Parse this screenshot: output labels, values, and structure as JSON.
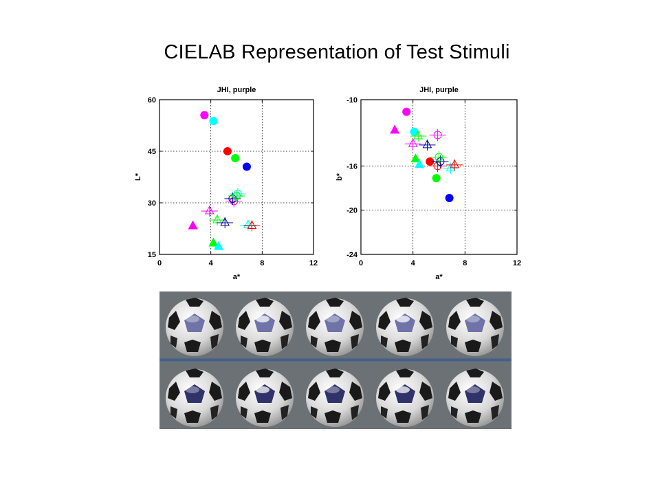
{
  "slide": {
    "title": "CIELAB Representation of Test Stimuli"
  },
  "colors": {
    "magenta": "#ff00ff",
    "cyan": "#00ffff",
    "red": "#ff0000",
    "green": "#00ff00",
    "blue": "#0000ff",
    "navy": "#0000a0"
  },
  "chart_data": [
    {
      "type": "scatter",
      "title": "JHI, purple",
      "xlabel": "a*",
      "ylabel": "L*",
      "xlim": [
        0,
        12
      ],
      "ylim": [
        15,
        60
      ],
      "xticks": [
        "0",
        "4",
        "8",
        "12"
      ],
      "yticks": [
        "15",
        "30",
        "45",
        "60"
      ],
      "grid": true,
      "series": [
        {
          "color": "magenta",
          "marker": "circle",
          "points": [
            [
              3.5,
              55.5
            ]
          ]
        },
        {
          "color": "cyan",
          "marker": "circle",
          "points": [
            [
              4.2,
              53.8
            ]
          ]
        },
        {
          "color": "red",
          "marker": "circle",
          "points": [
            [
              5.3,
              45.0
            ]
          ]
        },
        {
          "color": "green",
          "marker": "circle",
          "points": [
            [
              5.9,
              43.0
            ]
          ]
        },
        {
          "color": "blue",
          "marker": "circle",
          "points": [
            [
              6.8,
              40.5
            ]
          ]
        },
        {
          "color": "magenta",
          "marker": "triangle",
          "points": [
            [
              2.6,
              23.5
            ]
          ]
        },
        {
          "color": "green",
          "marker": "triangle",
          "points": [
            [
              4.2,
              18.5
            ]
          ]
        },
        {
          "color": "cyan",
          "marker": "triangle",
          "points": [
            [
              4.6,
              17.5
            ]
          ]
        },
        {
          "color": "magenta",
          "marker": "open-triangle",
          "points": [
            [
              3.9,
              27.6
            ]
          ]
        },
        {
          "color": "green",
          "marker": "open-triangle",
          "points": [
            [
              4.5,
              25.0
            ]
          ]
        },
        {
          "color": "navy",
          "marker": "open-triangle",
          "points": [
            [
              5.1,
              24.2
            ]
          ]
        },
        {
          "color": "cyan",
          "marker": "open-triangle",
          "points": [
            [
              6.9,
              23.5
            ]
          ]
        },
        {
          "color": "red",
          "marker": "open-triangle",
          "points": [
            [
              7.2,
              23.3
            ]
          ]
        },
        {
          "color": "magenta",
          "marker": "open-circle",
          "points": [
            [
              5.8,
              30.5
            ]
          ]
        },
        {
          "color": "cyan",
          "marker": "open-circle",
          "points": [
            [
              6.1,
              32.6
            ]
          ]
        },
        {
          "color": "navy",
          "marker": "open-circle",
          "points": [
            [
              5.7,
              31.2
            ]
          ]
        },
        {
          "color": "green",
          "marker": "open-circle",
          "points": [
            [
              6.0,
              32.0
            ]
          ]
        }
      ]
    },
    {
      "type": "scatter",
      "title": "JHI, purple",
      "xlabel": "a*",
      "ylabel": "b*",
      "xlim": [
        0,
        12
      ],
      "ylim": [
        -24,
        -10
      ],
      "xticks": [
        "0",
        "4",
        "8",
        "12"
      ],
      "yticks": [
        "-24",
        "-20",
        "-16",
        "-10"
      ],
      "grid": true,
      "series": [
        {
          "color": "magenta",
          "marker": "circle",
          "points": [
            [
              3.5,
              -11.1
            ]
          ]
        },
        {
          "color": "cyan",
          "marker": "circle",
          "points": [
            [
              4.1,
              -12.9
            ]
          ]
        },
        {
          "color": "red",
          "marker": "circle",
          "points": [
            [
              5.3,
              -15.6
            ]
          ]
        },
        {
          "color": "green",
          "marker": "circle",
          "points": [
            [
              5.8,
              -17.1
            ]
          ]
        },
        {
          "color": "blue",
          "marker": "circle",
          "points": [
            [
              6.8,
              -18.9
            ]
          ]
        },
        {
          "color": "magenta",
          "marker": "triangle",
          "points": [
            [
              2.6,
              -12.7
            ]
          ]
        },
        {
          "color": "green",
          "marker": "triangle",
          "points": [
            [
              4.2,
              -15.3
            ]
          ]
        },
        {
          "color": "cyan",
          "marker": "triangle",
          "points": [
            [
              4.5,
              -15.8
            ]
          ]
        },
        {
          "color": "magenta",
          "marker": "open-triangle",
          "points": [
            [
              4.0,
              -14.0
            ]
          ]
        },
        {
          "color": "green",
          "marker": "open-triangle",
          "points": [
            [
              4.4,
              -13.3
            ]
          ]
        },
        {
          "color": "navy",
          "marker": "open-triangle",
          "points": [
            [
              5.1,
              -14.1
            ]
          ]
        },
        {
          "color": "cyan",
          "marker": "open-triangle",
          "points": [
            [
              6.9,
              -16.2
            ]
          ]
        },
        {
          "color": "red",
          "marker": "open-triangle",
          "points": [
            [
              7.2,
              -15.9
            ]
          ]
        },
        {
          "color": "magenta",
          "marker": "open-circle",
          "points": [
            [
              5.9,
              -13.2
            ]
          ]
        },
        {
          "color": "red",
          "marker": "open-circle",
          "points": [
            [
              5.9,
              -16.0
            ]
          ]
        },
        {
          "color": "navy",
          "marker": "open-circle",
          "points": [
            [
              6.1,
              -15.6
            ]
          ]
        },
        {
          "color": "green",
          "marker": "open-circle",
          "points": [
            [
              6.0,
              -15.2
            ]
          ]
        }
      ]
    }
  ],
  "photo_strip": {
    "rows": 2,
    "columns": 5,
    "subject": "soccer-ball",
    "background_color": "#6b7174",
    "top_row_patch_color": "#6f73a8",
    "bottom_row_patch_color": "#30336a"
  }
}
